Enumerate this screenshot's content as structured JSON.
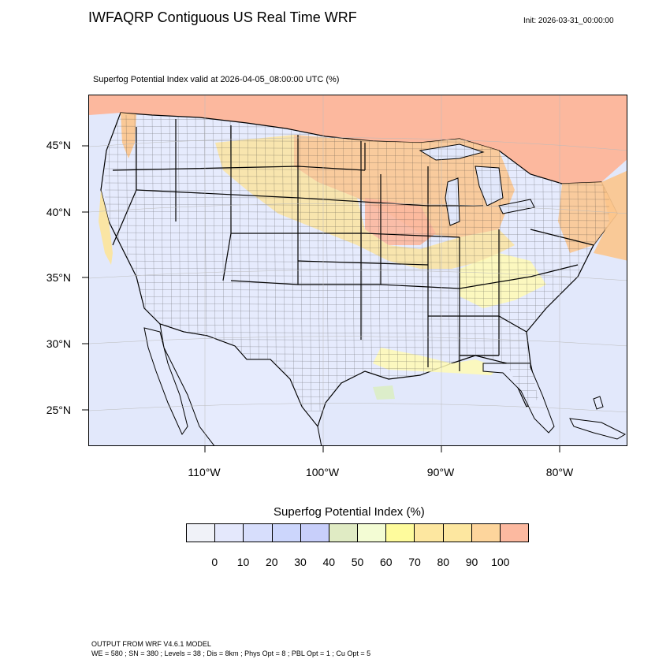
{
  "header": {
    "title": "IWFAQRP Contiguous US Real Time WRF",
    "init": "Init: 2026-03-31_00:00:00",
    "subtitle": "Superfog Potential Index valid at 2026-04-05_08:00:00 UTC   (%)"
  },
  "map": {
    "lat_labels": [
      "45°N",
      "40°N",
      "35°N",
      "30°N",
      "25°N"
    ],
    "lon_labels": [
      "110°W",
      "100°W",
      "90°W",
      "80°W"
    ],
    "colors": {
      "ocean": "#e2e8fb",
      "land_low": "#e6ebfd",
      "yellow": "#fffab4",
      "gold": "#fde49a",
      "orange": "#fcc58c",
      "salmon": "#fcb89e",
      "green": "#dcedc4"
    }
  },
  "colorbar": {
    "title": "Superfog Potential Index  (%)",
    "ticks": [
      "0",
      "10",
      "20",
      "30",
      "40",
      "50",
      "60",
      "70",
      "80",
      "90",
      "100"
    ],
    "colors": [
      "#f0f2f8",
      "#e4e8fc",
      "#d7defc",
      "#ccd6fc",
      "#c8cffa",
      "#e0ebc4",
      "#f3fcd4",
      "#fefb9c",
      "#fde7a0",
      "#fde7a0",
      "#fdd59c",
      "#fcb9a0"
    ]
  },
  "footer": {
    "line1": "OUTPUT FROM WRF V4.6.1 MODEL",
    "line2": "WE = 580 ; SN = 380 ; Levels = 38 ; Dis = 8km ; Phys Opt = 8 ; PBL Opt = 1 ; Cu Opt = 5"
  }
}
